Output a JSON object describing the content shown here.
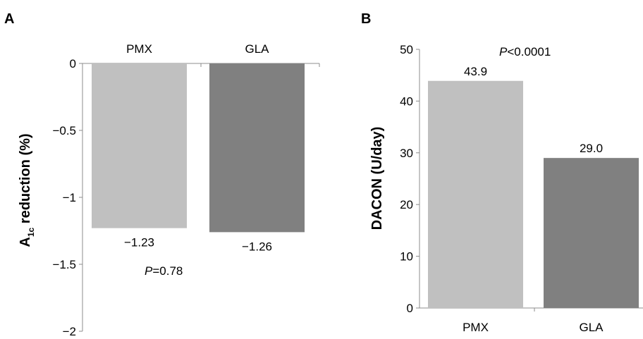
{
  "chart_data": [
    {
      "panel": "A",
      "type": "bar",
      "categories": [
        "PMX",
        "GLA"
      ],
      "values": [
        -1.23,
        -1.26
      ],
      "value_labels": [
        "−1.23",
        "−1.26"
      ],
      "colors": [
        "#c0c0c0",
        "#808080"
      ],
      "ylabel_main": "A",
      "ylabel_sub": "1c",
      "ylabel_rest": " reduction (%)",
      "ylim": [
        -2,
        0
      ],
      "yticks": [
        0,
        -0.5,
        -1,
        -1.5,
        -2
      ],
      "ytick_labels": [
        "0",
        "−0.5",
        "−1",
        "−1.5",
        "−2"
      ],
      "annotation_p": "P",
      "annotation_rest": "=0.78",
      "grid": false
    },
    {
      "panel": "B",
      "type": "bar",
      "categories": [
        "PMX",
        "GLA"
      ],
      "values": [
        43.9,
        29.0
      ],
      "value_labels": [
        "43.9",
        "29.0"
      ],
      "colors": [
        "#c0c0c0",
        "#808080"
      ],
      "ylabel": "DACON (U/day)",
      "ylim": [
        0,
        50
      ],
      "yticks": [
        0,
        10,
        20,
        30,
        40,
        50
      ],
      "ytick_labels": [
        "0",
        "10",
        "20",
        "30",
        "40",
        "50"
      ],
      "annotation_p": "P",
      "annotation_rest": "<0.0001",
      "grid": false
    }
  ]
}
